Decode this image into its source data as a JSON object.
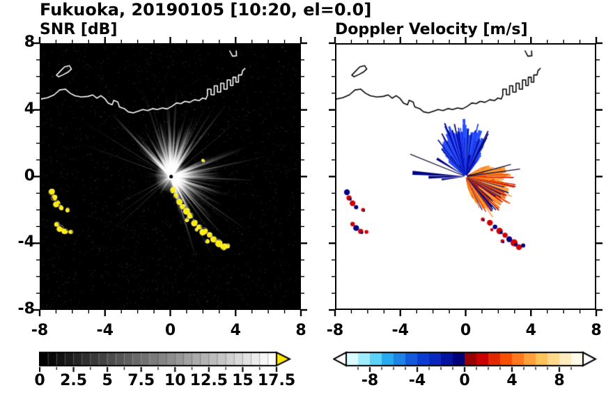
{
  "title": "Fukuoka, 20190105 [10:20, el=0.0]",
  "panels": [
    {
      "title": "SNR [dB]"
    },
    {
      "title": "Doppler Velocity [m/s]"
    }
  ],
  "axes": {
    "xlim": [
      -8,
      8
    ],
    "ylim": [
      -8,
      8
    ],
    "x_tick_values": [
      -8,
      -4,
      0,
      4,
      8
    ],
    "x_tick_labels": [
      "-8",
      "-4",
      "0",
      "4",
      "8"
    ],
    "y_tick_values": [
      8,
      4,
      0,
      -4,
      -8
    ],
    "y_tick_labels": [
      "8",
      "4",
      "0",
      "-4",
      "-8"
    ],
    "minor_tick_step": 1
  },
  "map": {
    "coastline": [
      [
        -8.0,
        4.7
      ],
      [
        -7.6,
        4.78
      ],
      [
        -7.2,
        4.95
      ],
      [
        -6.85,
        5.25
      ],
      [
        -6.5,
        5.3
      ],
      [
        -6.2,
        5.05
      ],
      [
        -5.9,
        4.9
      ],
      [
        -5.5,
        4.82
      ],
      [
        -5.1,
        4.86
      ],
      [
        -4.8,
        4.95
      ],
      [
        -4.55,
        4.75
      ],
      [
        -4.3,
        4.9
      ],
      [
        -4.05,
        4.72
      ],
      [
        -3.85,
        4.45
      ],
      [
        -3.6,
        4.35
      ],
      [
        -3.5,
        4.62
      ],
      [
        -3.25,
        4.52
      ],
      [
        -3.15,
        4.22
      ],
      [
        -2.85,
        4.12
      ],
      [
        -2.6,
        3.92
      ],
      [
        -2.3,
        3.86
      ],
      [
        -2.0,
        3.96
      ],
      [
        -1.7,
        4.06
      ],
      [
        -1.4,
        4.0
      ],
      [
        -1.1,
        4.12
      ],
      [
        -0.8,
        4.06
      ],
      [
        -0.5,
        4.16
      ],
      [
        -0.2,
        4.1
      ],
      [
        0.1,
        4.26
      ],
      [
        0.38,
        4.46
      ],
      [
        0.66,
        4.42
      ],
      [
        0.9,
        4.56
      ],
      [
        1.2,
        4.5
      ],
      [
        1.5,
        4.66
      ],
      [
        1.78,
        4.6
      ],
      [
        2.0,
        4.76
      ],
      [
        2.2,
        4.7
      ],
      [
        2.3,
        4.92
      ],
      [
        2.3,
        5.3
      ],
      [
        2.52,
        5.3
      ],
      [
        2.52,
        4.96
      ],
      [
        2.72,
        4.96
      ],
      [
        2.72,
        5.5
      ],
      [
        2.92,
        5.5
      ],
      [
        2.92,
        5.12
      ],
      [
        3.12,
        5.12
      ],
      [
        3.12,
        5.66
      ],
      [
        3.32,
        5.66
      ],
      [
        3.32,
        5.3
      ],
      [
        3.52,
        5.3
      ],
      [
        3.52,
        5.86
      ],
      [
        3.72,
        5.86
      ],
      [
        3.72,
        5.52
      ],
      [
        3.88,
        5.52
      ],
      [
        3.88,
        6.02
      ],
      [
        4.06,
        6.02
      ],
      [
        4.06,
        5.72
      ],
      [
        4.22,
        5.72
      ],
      [
        4.22,
        6.16
      ],
      [
        4.42,
        6.16
      ],
      [
        4.48,
        6.42
      ],
      [
        4.62,
        6.55
      ]
    ],
    "island": [
      [
        -7.05,
        6.15
      ],
      [
        -6.8,
        6.4
      ],
      [
        -6.55,
        6.65
      ],
      [
        -6.25,
        6.72
      ],
      [
        -6.12,
        6.52
      ],
      [
        -6.35,
        6.32
      ],
      [
        -6.62,
        6.18
      ],
      [
        -6.92,
        6.05
      ]
    ],
    "port_hook": [
      [
        3.68,
        7.62
      ],
      [
        3.85,
        7.3
      ],
      [
        4.1,
        7.32
      ],
      [
        4.08,
        7.62
      ]
    ],
    "blobs_arc": [
      [
        0.15,
        -0.85,
        0.16
      ],
      [
        0.32,
        -1.18,
        0.13
      ],
      [
        0.55,
        -1.52,
        0.18
      ],
      [
        0.8,
        -1.83,
        0.15
      ],
      [
        1.02,
        -2.1,
        0.2
      ],
      [
        1.26,
        -2.36,
        0.16
      ],
      [
        1.06,
        -2.6,
        0.12
      ],
      [
        1.5,
        -2.8,
        0.18
      ],
      [
        1.82,
        -3.05,
        0.14
      ],
      [
        2.1,
        -3.3,
        0.2
      ],
      [
        2.44,
        -3.55,
        0.16
      ],
      [
        2.7,
        -3.8,
        0.18
      ],
      [
        3.0,
        -4.02,
        0.22
      ],
      [
        3.3,
        -4.28,
        0.18
      ],
      [
        3.56,
        -4.18,
        0.13
      ],
      [
        2.28,
        -3.92,
        0.12
      ],
      [
        1.62,
        -3.22,
        0.1
      ]
    ],
    "blobs_left": [
      [
        -7.35,
        -0.95,
        0.18
      ],
      [
        -7.22,
        -1.3,
        0.16
      ],
      [
        -7.0,
        -1.62,
        0.18
      ],
      [
        -6.78,
        -1.86,
        0.13
      ],
      [
        -6.35,
        -2.02,
        0.12
      ],
      [
        -7.0,
        -2.88,
        0.14
      ],
      [
        -6.78,
        -3.12,
        0.18
      ],
      [
        -6.5,
        -3.32,
        0.16
      ],
      [
        -6.14,
        -3.36,
        0.12
      ]
    ],
    "speck": [
      2.05,
      0.95,
      0.09
    ]
  },
  "chart_data": [
    {
      "type": "heatmap",
      "title": "SNR [dB]",
      "xlabel": "",
      "ylabel": "",
      "xlim": [
        -8,
        8
      ],
      "ylim": [
        -8,
        8
      ],
      "xticks": [
        -8,
        -4,
        0,
        4,
        8
      ],
      "yticks": [
        -8,
        -4,
        0,
        4,
        8
      ],
      "background": "#000000",
      "colorbar": {
        "range": [
          0,
          17.5
        ],
        "tick_values": [
          0,
          2.5,
          5,
          7.5,
          10,
          12.5,
          15,
          17.5
        ],
        "tick_labels": [
          "0",
          "2.5",
          "5",
          "7.5",
          "10",
          "12.5",
          "15",
          "17.5"
        ],
        "minor_step": 1.25,
        "segments": 28,
        "start_color": "#000000",
        "end_color": "#ffffff",
        "over_color": "#ffe600"
      },
      "features": {
        "radar_center": [
          0.05,
          0
        ],
        "bright_fan_sectors_deg": [
          [
            52,
            140
          ],
          [
            -78,
            30
          ]
        ],
        "long_ray_angles_deg": [
          207,
          216,
          223,
          160,
          148,
          97,
          64,
          40,
          12,
          -18,
          -38,
          -55
        ],
        "coastline_color": "#ffffff",
        "high_snr_color": "#ffec00"
      }
    },
    {
      "type": "heatmap",
      "title": "Doppler Velocity [m/s]",
      "xlabel": "",
      "ylabel": "",
      "xlim": [
        -8,
        8
      ],
      "ylim": [
        -8,
        8
      ],
      "xticks": [
        -8,
        -4,
        0,
        4,
        8
      ],
      "yticks": [
        -8,
        -4,
        0,
        4,
        8
      ],
      "background": "#ffffff",
      "colorbar": {
        "range": [
          -10,
          10
        ],
        "tick_values": [
          -8,
          -4,
          0,
          4,
          8
        ],
        "tick_labels": [
          "-8",
          "-4",
          "0",
          "4",
          "8"
        ],
        "minor_step": 1,
        "under_color": "#ffffff",
        "over_color": "#ffffff",
        "segment_colors": [
          "#dcfbff",
          "#a0ecff",
          "#5ad2fa",
          "#28aaf0",
          "#1e82e6",
          "#1458dc",
          "#0a3cd2",
          "#0a28be",
          "#0014a0",
          "#000078",
          "#960000",
          "#c80000",
          "#e12800",
          "#f55000",
          "#ff781e",
          "#ffa03c",
          "#ffc35a",
          "#ffd88c",
          "#ffecbe",
          "#fffbe8"
        ]
      },
      "features": {
        "negative_fan": {
          "start_deg": 52,
          "end_deg": 140,
          "min_radius": 1.0,
          "max_radius": 3.6,
          "palette": [
            "#000064",
            "#000082",
            "#0000aa",
            "#0a1ed2",
            "#1e3cf0",
            "#2850ff"
          ]
        },
        "positive_fan": {
          "start_deg": -78,
          "end_deg": 30,
          "min_radius": 0.8,
          "max_radius": 3.2,
          "palette": [
            "#aa0000",
            "#c80000",
            "#e12d00",
            "#ff5a00",
            "#ff821e",
            "#ffa03c"
          ]
        },
        "negative_speck_color": "#000078",
        "left_spikes": [
          [
            176,
            3.3
          ],
          [
            181,
            2.3
          ],
          [
            187,
            1.5
          ],
          [
            148,
            2.1
          ]
        ],
        "right_needles": [
          [
            8,
            3.4
          ],
          [
            15,
            2.9
          ]
        ],
        "needle_upper_left": [
          158,
          3.7
        ],
        "needle_color": "#14143c",
        "spike_color": "#000082",
        "patch_red": "#d20000",
        "patch_navy": "#000082",
        "coastline_color": "#000000"
      }
    }
  ]
}
